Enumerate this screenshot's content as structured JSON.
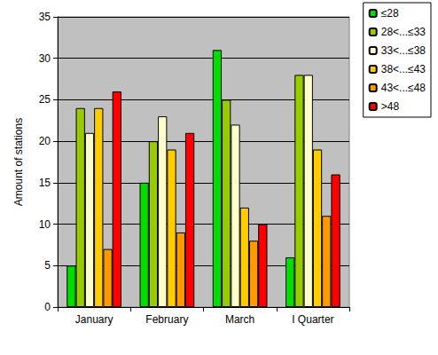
{
  "chart_data": {
    "type": "bar",
    "y_label": "Amount of stations",
    "categories": [
      "January",
      "February",
      "March",
      "I Quarter"
    ],
    "series": [
      {
        "name": "≤28",
        "color": "#00dd00",
        "values": [
          5,
          15,
          31,
          6
        ]
      },
      {
        "name": "28<...≤33",
        "color": "#99cc00",
        "values": [
          24,
          20,
          25,
          28
        ]
      },
      {
        "name": "33<...≤38",
        "color": "#ffffcc",
        "values": [
          21,
          23,
          22,
          28
        ]
      },
      {
        "name": "38<...≤43",
        "color": "#ffcc00",
        "values": [
          24,
          19,
          12,
          19
        ]
      },
      {
        "name": "43<...≤48",
        "color": "#ff9900",
        "values": [
          7,
          9,
          8,
          11
        ]
      },
      {
        "name": ">48",
        "color": "#ff0000",
        "values": [
          26,
          21,
          10,
          16
        ]
      }
    ],
    "ylim": [
      0,
      35
    ],
    "yticks": [
      0,
      5,
      10,
      15,
      20,
      25,
      30,
      35
    ],
    "grid": true,
    "legend": "top-right"
  }
}
